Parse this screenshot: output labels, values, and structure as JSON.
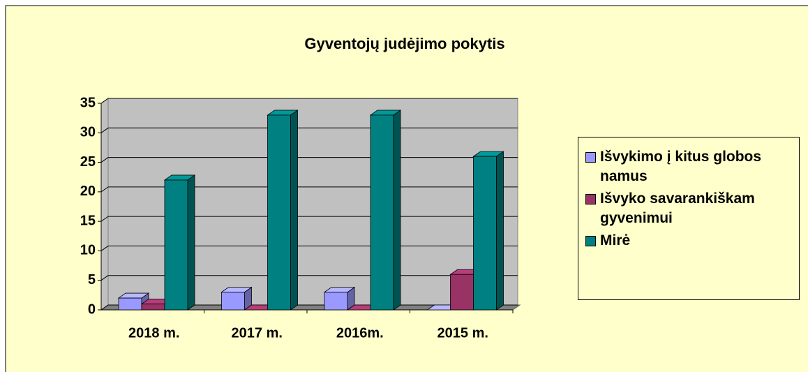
{
  "chart_data": {
    "type": "bar3d",
    "title": "Gyventojų judėjimo pokytis",
    "categories": [
      "2018 m.",
      "2017 m.",
      "2016m.",
      "2015 m."
    ],
    "series": [
      {
        "name": "Išvykimo į kitus globos namus",
        "color": "#9999ff",
        "values": [
          2,
          3,
          3,
          0
        ]
      },
      {
        "name": "Išvyko savarankiškam gyvenimui",
        "color": "#993366",
        "values": [
          1,
          0,
          0,
          6
        ]
      },
      {
        "name": "Mirė",
        "color": "#008080",
        "values": [
          22,
          33,
          33,
          26
        ]
      }
    ],
    "ylim": [
      0,
      35
    ],
    "yticks": [
      0,
      5,
      10,
      15,
      20,
      25,
      30,
      35
    ],
    "grid": true,
    "legend": "right"
  }
}
